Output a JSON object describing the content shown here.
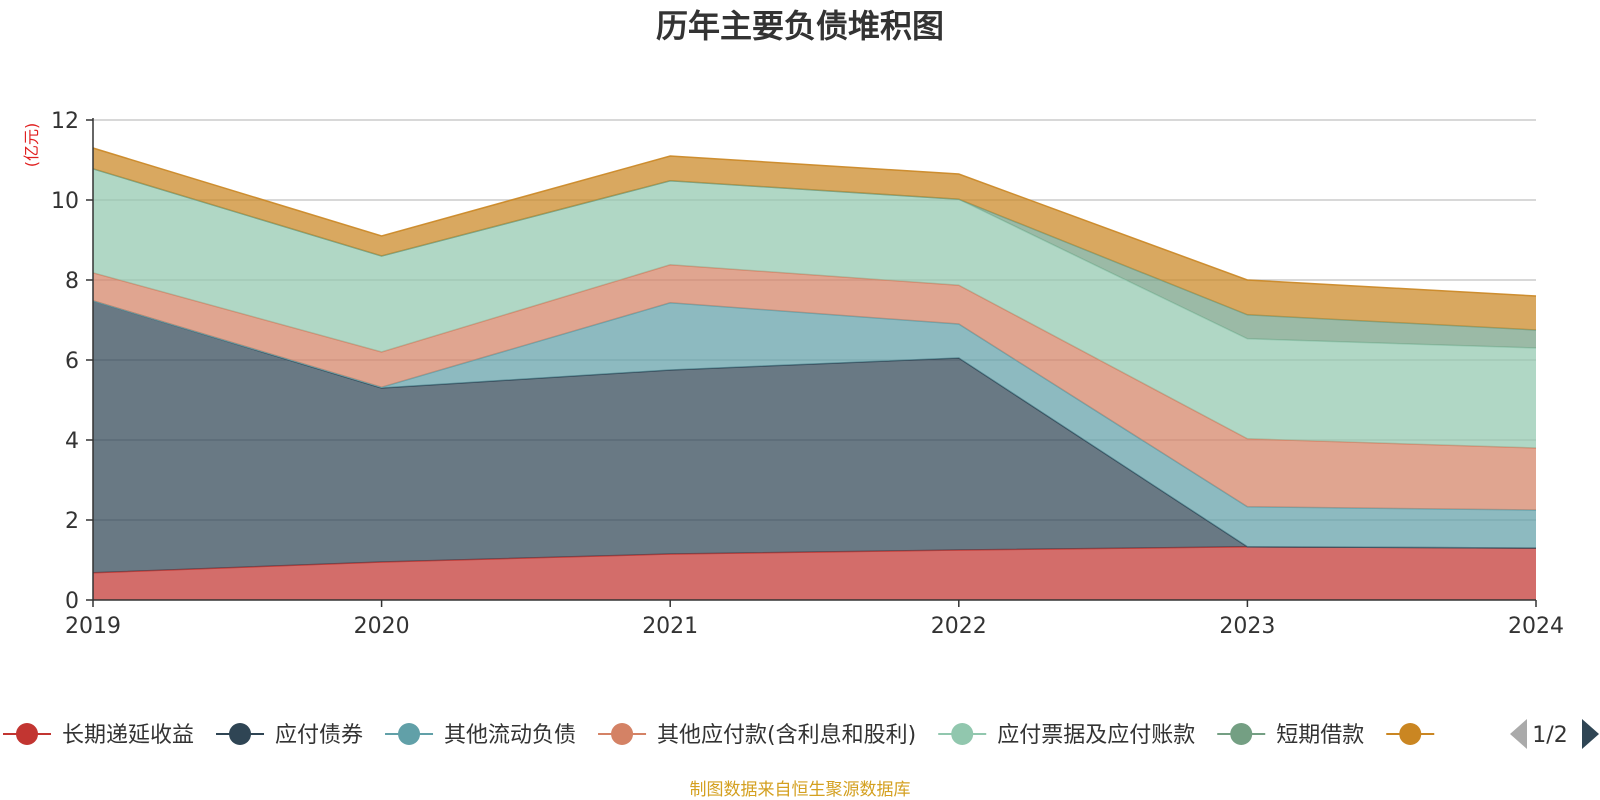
{
  "chart_data": {
    "type": "area",
    "stacked": true,
    "title": "历年主要负债堆积图",
    "unit_label": "(亿元)",
    "x": [
      "2019",
      "2020",
      "2021",
      "2022",
      "2023",
      "2024"
    ],
    "ylim": [
      0,
      12
    ],
    "yticks": [
      "0",
      "2",
      "4",
      "6",
      "8",
      "10",
      "12"
    ],
    "grid": true,
    "legend_position": "bottom",
    "series": [
      {
        "name": "长期递延收益",
        "color": "#c23531",
        "values": [
          0.68,
          0.95,
          1.15,
          1.25,
          1.33,
          1.3
        ]
      },
      {
        "name": "应付债券",
        "color": "#2f4554",
        "values": [
          6.8,
          4.35,
          4.6,
          4.8,
          0.0,
          0.0
        ]
      },
      {
        "name": "其他流动负债",
        "color": "#61a0a8",
        "values": [
          0.0,
          0.02,
          1.68,
          0.85,
          1.0,
          0.95
        ]
      },
      {
        "name": "其他应付款(含利息和股利)",
        "color": "#d48265",
        "values": [
          0.7,
          0.88,
          0.95,
          0.97,
          1.7,
          1.55
        ]
      },
      {
        "name": "应付票据及应付账款",
        "color": "#91c7ae",
        "values": [
          2.6,
          2.4,
          2.1,
          2.15,
          2.5,
          2.5
        ]
      },
      {
        "name": "短期借款",
        "color": "#749f83",
        "values": [
          0.0,
          0.0,
          0.0,
          0.0,
          0.6,
          0.45
        ]
      },
      {
        "name": "",
        "color": "#ca8622",
        "values": [
          0.52,
          0.5,
          0.62,
          0.63,
          0.87,
          0.85
        ]
      }
    ],
    "pager": "1/2"
  },
  "source_note": "制图数据来自恒生聚源数据库"
}
